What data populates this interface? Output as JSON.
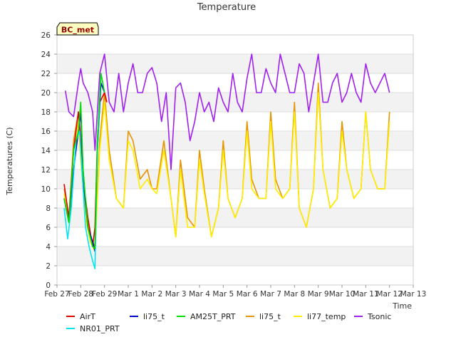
{
  "chart_data": {
    "type": "line",
    "title": "Temperature",
    "badge": "BC_met",
    "xlabel": "Time",
    "ylabel": "Temperatures (C)",
    "ylim": [
      0,
      26
    ],
    "yticks": [
      0,
      2,
      4,
      6,
      8,
      10,
      12,
      14,
      16,
      18,
      20,
      22,
      24,
      26
    ],
    "xlim": [
      0,
      15
    ],
    "xticks": [
      {
        "v": 0,
        "label": "Feb 27"
      },
      {
        "v": 1,
        "label": "Feb 28"
      },
      {
        "v": 2,
        "label": "Feb 29"
      },
      {
        "v": 3,
        "label": "Mar 1"
      },
      {
        "v": 4,
        "label": "Mar 2"
      },
      {
        "v": 5,
        "label": "Mar 3"
      },
      {
        "v": 6,
        "label": "Mar 4"
      },
      {
        "v": 7,
        "label": "Mar 5"
      },
      {
        "v": 8,
        "label": "Mar 6"
      },
      {
        "v": 9,
        "label": "Mar 7"
      },
      {
        "v": 10,
        "label": "Mar 8"
      },
      {
        "v": 11,
        "label": "Mar 9"
      },
      {
        "v": 12,
        "label": "Mar 10"
      },
      {
        "v": 13,
        "label": "Mar 11"
      },
      {
        "v": 14,
        "label": "Mar 12"
      },
      {
        "v": 15,
        "label": "Mar 13"
      }
    ],
    "grid": true,
    "legend_position": "bottom",
    "series": [
      {
        "name": "AirT",
        "color": "#dd0000",
        "x": [
          0.3,
          0.5,
          0.7,
          0.9,
          1.0,
          1.1,
          1.2,
          1.3,
          1.5,
          1.6,
          1.7,
          1.8,
          2.0,
          2.1
        ],
        "y": [
          10.5,
          7,
          14,
          18,
          15,
          10,
          9,
          7,
          4,
          6,
          15,
          19,
          20,
          19
        ]
      },
      {
        "name": "NR01_PRT",
        "color": "#00e5ee",
        "x": [
          0.3,
          0.45,
          0.6,
          0.8,
          0.95,
          1.05,
          1.2,
          1.35,
          1.5,
          1.6,
          1.7,
          1.85,
          2.0
        ],
        "y": [
          8,
          4.8,
          8,
          15,
          16,
          12,
          6,
          4,
          2.5,
          1.7,
          14,
          22,
          20
        ]
      },
      {
        "name": "li75_t",
        "color": "#0000cc",
        "x": [
          0.3,
          0.5,
          0.7,
          0.9,
          1.0,
          1.1,
          1.3,
          1.5,
          1.6,
          1.7,
          1.85,
          2.0
        ],
        "y": [
          9,
          6.5,
          12,
          16,
          18,
          11,
          6,
          4.5,
          3.5,
          14,
          21,
          20
        ]
      },
      {
        "name": "AM25T_PRT",
        "color": "#00dd00",
        "x": [
          0.3,
          0.5,
          0.7,
          0.9,
          1.0,
          1.1,
          1.3,
          1.5,
          1.6,
          1.7,
          1.85,
          2.0
        ],
        "y": [
          9,
          6.5,
          14,
          16,
          19,
          12,
          6,
          4,
          3.8,
          15,
          22,
          20
        ]
      },
      {
        "name": "li75_t",
        "color": "#e69500",
        "x": [
          0.3,
          0.5,
          0.7,
          0.9,
          1.0,
          1.2,
          1.4,
          1.6,
          1.8,
          2.0,
          2.2,
          2.5,
          2.8,
          3.0,
          3.2,
          3.5,
          3.8,
          4.0,
          4.2,
          4.5,
          4.8,
          5.0,
          5.2,
          5.5,
          5.8,
          6.0,
          6.2,
          6.5,
          6.8,
          7.0,
          7.2,
          7.5,
          7.8,
          8.0,
          8.2,
          8.5,
          8.8,
          9.0,
          9.2,
          9.5,
          9.8,
          10.0,
          10.2,
          10.5,
          10.8,
          11.0,
          11.2,
          11.5,
          11.8,
          12.0,
          12.2,
          12.5,
          12.8,
          13.0,
          13.2,
          13.5,
          13.8,
          14.0
        ],
        "y": [
          10,
          7,
          15,
          18,
          14,
          8,
          5,
          4,
          15,
          20,
          14,
          9,
          8,
          16,
          15,
          11,
          12,
          10,
          10,
          15,
          9,
          5,
          13,
          7,
          6,
          14,
          10,
          5,
          8,
          15,
          9,
          7,
          9,
          17,
          11,
          9,
          9,
          18,
          11,
          9,
          10,
          19,
          8,
          6,
          10,
          21,
          12,
          8,
          9,
          17,
          12,
          9,
          10,
          18,
          12,
          10,
          10,
          18
        ]
      },
      {
        "name": "li77_temp",
        "color": "#ffee00",
        "x": [
          0.3,
          0.5,
          0.7,
          0.9,
          1.0,
          1.2,
          1.4,
          1.6,
          1.8,
          2.0,
          2.2,
          2.5,
          2.8,
          3.0,
          3.2,
          3.5,
          3.8,
          4.0,
          4.2,
          4.5,
          4.8,
          5.0,
          5.2,
          5.5,
          5.8,
          6.0,
          6.2,
          6.5,
          6.8,
          7.0,
          7.2,
          7.5,
          7.8,
          8.0,
          8.2,
          8.5,
          8.8,
          9.0,
          9.2,
          9.5,
          9.8,
          10.0,
          10.2,
          10.5,
          10.8,
          11.0,
          11.2,
          11.5,
          11.8,
          12.0,
          12.2,
          12.5,
          12.8,
          13.0,
          13.2,
          13.5,
          13.8,
          14.0
        ],
        "y": [
          9.5,
          6.5,
          14,
          17,
          13,
          7,
          4.5,
          3.5,
          14,
          19,
          13,
          9,
          8,
          15,
          14,
          10,
          11,
          10,
          9.5,
          14,
          9,
          5,
          12,
          6,
          6,
          13,
          9.5,
          5,
          8,
          14,
          9,
          7,
          9,
          16,
          10,
          9,
          9,
          17,
          10,
          9,
          10,
          18,
          8,
          6,
          10,
          20,
          12,
          8,
          9,
          16,
          12,
          9,
          10,
          18,
          12,
          10,
          10,
          17
        ]
      },
      {
        "name": "Tsonic",
        "color": "#a020f0",
        "x": [
          0.35,
          0.5,
          0.7,
          0.9,
          1.0,
          1.1,
          1.3,
          1.5,
          1.6,
          1.8,
          2.0,
          2.2,
          2.4,
          2.6,
          2.8,
          3.0,
          3.2,
          3.4,
          3.6,
          3.8,
          4.0,
          4.2,
          4.4,
          4.6,
          4.8,
          5.0,
          5.2,
          5.4,
          5.6,
          5.8,
          6.0,
          6.2,
          6.4,
          6.6,
          6.8,
          7.0,
          7.2,
          7.4,
          7.6,
          7.8,
          8.0,
          8.2,
          8.4,
          8.6,
          8.8,
          9.0,
          9.2,
          9.4,
          9.6,
          9.8,
          10.0,
          10.2,
          10.4,
          10.6,
          10.8,
          11.0,
          11.2,
          11.4,
          11.6,
          11.8,
          12.0,
          12.2,
          12.4,
          12.6,
          12.8,
          13.0,
          13.2,
          13.4,
          13.6,
          13.8,
          14.0
        ],
        "y": [
          20.2,
          18,
          17.5,
          21,
          22.5,
          21,
          20,
          18,
          14,
          22,
          24,
          19,
          18,
          22,
          18,
          21,
          23,
          20,
          20,
          22,
          22.6,
          21,
          17,
          20,
          12,
          20.5,
          21,
          19,
          15,
          17,
          20,
          18,
          19,
          17,
          20.5,
          19,
          18,
          22,
          19,
          18,
          21.5,
          24,
          20,
          20,
          22.5,
          21,
          20,
          24,
          22,
          20,
          20,
          23,
          22,
          18,
          21,
          24,
          19,
          19,
          21,
          22,
          19,
          20,
          22,
          20,
          19,
          23,
          21,
          20,
          21,
          22,
          20
        ]
      }
    ]
  }
}
